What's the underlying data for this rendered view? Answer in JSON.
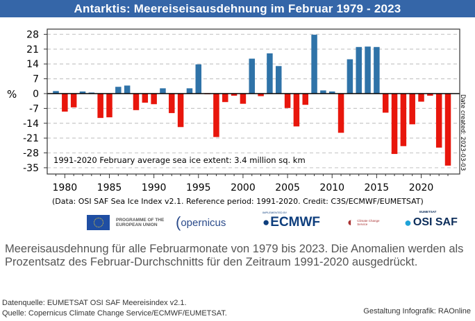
{
  "header": {
    "title": "Antarktis: Meereiseisausdehnung im Februar 1979 - 2023"
  },
  "chart_data": {
    "type": "bar",
    "title": "Antarktis: Meereiseisausdehnung im Februar 1979 - 2023",
    "xlabel": "",
    "ylabel": "%",
    "ylim": [
      -35,
      28
    ],
    "yticks": [
      28,
      21,
      14,
      7,
      0,
      -7,
      -14,
      -21,
      -28,
      -35
    ],
    "xticks": [
      1980,
      1985,
      1990,
      1995,
      2000,
      2005,
      2010,
      2015,
      2020
    ],
    "grid": true,
    "colors": {
      "positive": "#2f73a8",
      "negative": "#e8160c"
    },
    "x": [
      1979,
      1980,
      1981,
      1982,
      1983,
      1984,
      1985,
      1986,
      1987,
      1988,
      1989,
      1990,
      1991,
      1992,
      1993,
      1994,
      1995,
      1996,
      1997,
      1998,
      1999,
      2000,
      2001,
      2002,
      2003,
      2004,
      2005,
      2006,
      2007,
      2008,
      2009,
      2010,
      2011,
      2012,
      2013,
      2014,
      2015,
      2016,
      2017,
      2018,
      2019,
      2020,
      2021,
      2022,
      2023
    ],
    "values": [
      1.2,
      -8.5,
      -6.5,
      1.0,
      0.5,
      -11.5,
      -11.2,
      3.2,
      3.8,
      -7.8,
      -4.3,
      -5.0,
      2.5,
      -9.2,
      -15.8,
      2.5,
      13.8,
      -0.3,
      -20.5,
      -4.0,
      -1.0,
      -4.8,
      16.5,
      -1.2,
      19.0,
      13.0,
      -6.8,
      -15.5,
      -5.3,
      27.8,
      1.5,
      1.0,
      -18.5,
      16.2,
      22.0,
      22.2,
      22.0,
      -9.0,
      -28.5,
      -24.8,
      -14.5,
      -3.8,
      -1.0,
      -25.5,
      -34.0
    ],
    "annotation": "1991-2020 February average sea ice extent: 3.4 million sq. km",
    "footnote": "(Data: OSI SAF Sea Ice Index v2.1.  Reference period: 1991-2020.  Credit: C3S/ECMWF/EUMETSAT)",
    "side_note": "Date created: 2023-03-03"
  },
  "logos": {
    "eu": "PROGRAMME OF THE EUROPEAN UNION",
    "copernicus": "opernicus",
    "ecmwf_small": "IMPLEMENTED BY",
    "ecmwf": "ECMWF",
    "c3s": "Climate Change Service",
    "osi_small": "EUMETSAT",
    "osi": "OSI SAF"
  },
  "caption": "Meereisausdehnung für alle Februarmonate von 1979 bis 2023. Die Anomalien werden als Prozentsatz des Februar-Durchschnitts für den Zeitraum 1991-2020 ausgedrückt.",
  "source_lines": [
    "Datenquelle: EUMETSAT OSI SAF Meereisindex v2.1.",
    "Quelle: Copernicus Climate Change Service/ECMWF/EUMETSAT."
  ],
  "credit": "Gestaltung Infografik: RAOnline"
}
